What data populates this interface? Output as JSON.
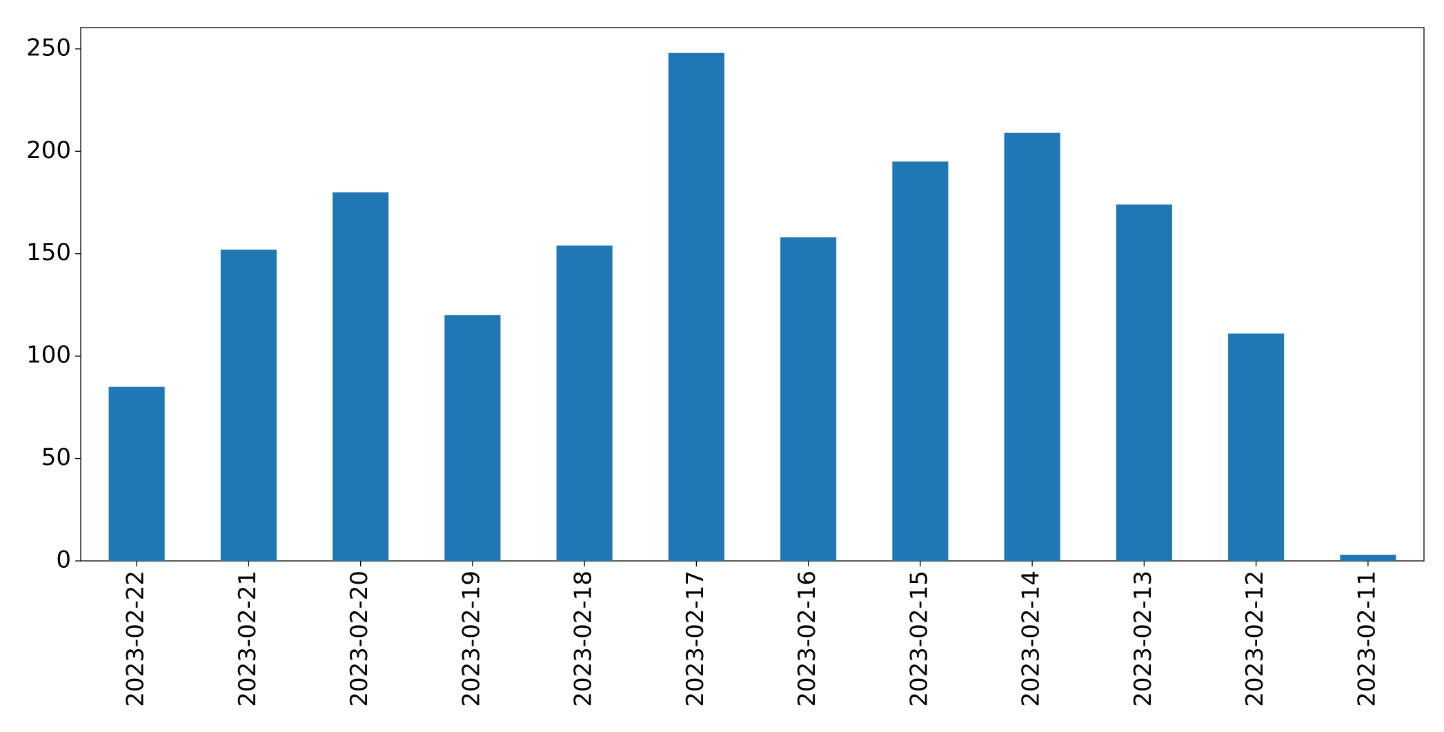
{
  "chart_data": {
    "type": "bar",
    "categories": [
      "2023-02-22",
      "2023-02-21",
      "2023-02-20",
      "2023-02-19",
      "2023-02-18",
      "2023-02-17",
      "2023-02-16",
      "2023-02-15",
      "2023-02-14",
      "2023-02-13",
      "2023-02-12",
      "2023-02-11"
    ],
    "values": [
      85,
      152,
      180,
      120,
      154,
      248,
      158,
      195,
      209,
      174,
      111,
      3
    ],
    "color": "#1f77b4",
    "ylim": [
      0,
      260.4
    ],
    "yticks": [
      0,
      50,
      100,
      150,
      200,
      250
    ],
    "grid": false
  }
}
